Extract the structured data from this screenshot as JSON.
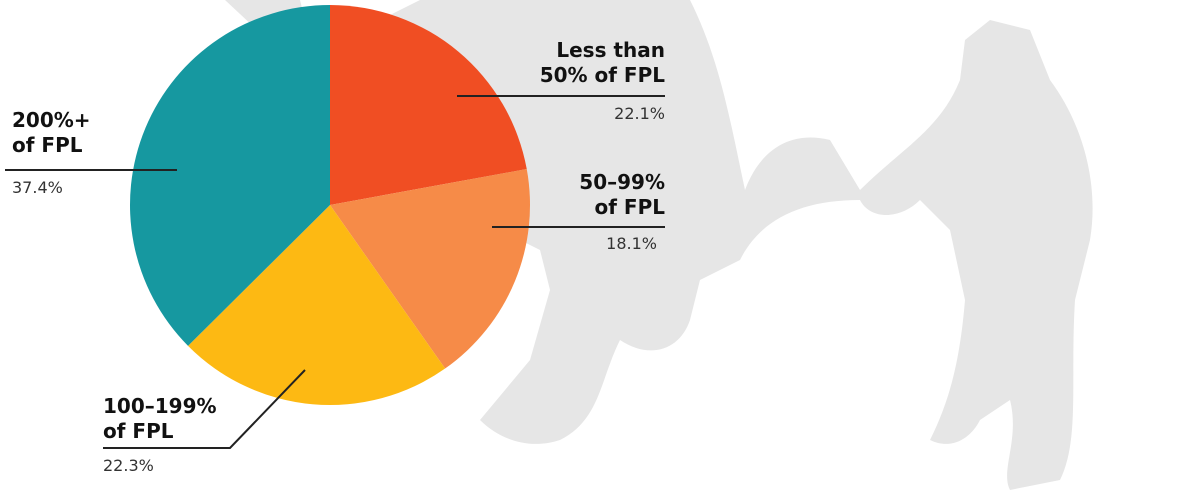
{
  "chart_data": {
    "type": "pie",
    "categories": [
      "Less than 50% of FPL",
      "50–99% of FPL",
      "100–199% of FPL",
      "200%+ of FPL"
    ],
    "values": [
      22.1,
      18.1,
      22.3,
      37.4
    ],
    "value_labels": [
      "22.1%",
      "18.1%",
      "22.3%",
      "37.4%"
    ],
    "colors": [
      "#f04e23",
      "#f68b48",
      "#fdb913",
      "#1698a0"
    ]
  }
}
